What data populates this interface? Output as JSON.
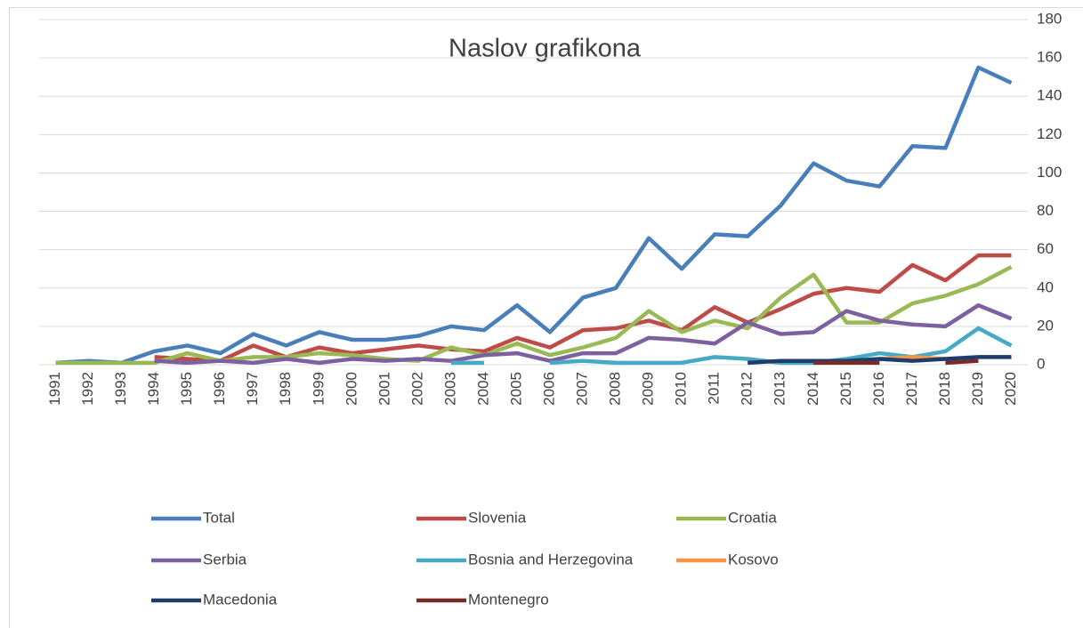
{
  "chart_data": {
    "type": "line",
    "title": "Naslov grafikona",
    "categories": [
      "1991",
      "1992",
      "1993",
      "1994",
      "1995",
      "1996",
      "1997",
      "1998",
      "1999",
      "2000",
      "2001",
      "2002",
      "2003",
      "2004",
      "2005",
      "2006",
      "2007",
      "2008",
      "2009",
      "2010",
      "2011",
      "2012",
      "2013",
      "2014",
      "2015",
      "2016",
      "2017",
      "2018",
      "2019",
      "2020"
    ],
    "ylim": [
      0,
      180
    ],
    "yticks": [
      0,
      20,
      40,
      60,
      80,
      100,
      120,
      140,
      160,
      180
    ],
    "grid": true,
    "legend": "bottom",
    "series": [
      {
        "name": "Total",
        "color": "#4a7ebb",
        "values": [
          1,
          2,
          1,
          7,
          10,
          6,
          16,
          10,
          17,
          13,
          13,
          15,
          20,
          18,
          31,
          17,
          35,
          40,
          66,
          50,
          68,
          67,
          83,
          105,
          96,
          93,
          114,
          113,
          155,
          147
        ]
      },
      {
        "name": "Slovenia",
        "color": "#be4b48",
        "values": [
          null,
          null,
          null,
          4,
          3,
          2,
          10,
          4,
          9,
          6,
          8,
          10,
          8,
          7,
          14,
          9,
          18,
          19,
          23,
          18,
          30,
          22,
          29,
          37,
          40,
          38,
          52,
          44,
          57,
          57
        ]
      },
      {
        "name": "Croatia",
        "color": "#98b954",
        "values": [
          1,
          1,
          1,
          1,
          6,
          2,
          4,
          4,
          6,
          5,
          3,
          2,
          9,
          5,
          11,
          5,
          9,
          14,
          28,
          17,
          23,
          19,
          35,
          47,
          22,
          22,
          32,
          36,
          42,
          51
        ]
      },
      {
        "name": "Serbia",
        "color": "#7d60a0",
        "values": [
          null,
          null,
          null,
          2,
          1,
          2,
          1,
          3,
          1,
          3,
          2,
          3,
          2,
          5,
          6,
          2,
          6,
          6,
          14,
          13,
          11,
          22,
          16,
          17,
          28,
          23,
          21,
          20,
          31,
          24
        ]
      },
      {
        "name": "Bosnia and Herzegovina",
        "color": "#46aac5",
        "values": [
          null,
          null,
          null,
          null,
          null,
          null,
          null,
          null,
          null,
          null,
          null,
          null,
          1,
          1,
          null,
          1,
          2,
          1,
          1,
          1,
          4,
          3,
          1,
          1,
          3,
          6,
          4,
          7,
          19,
          10
        ]
      },
      {
        "name": "Kosovo",
        "color": "#f79646",
        "values": [
          null,
          null,
          null,
          null,
          null,
          null,
          null,
          null,
          null,
          null,
          null,
          null,
          null,
          null,
          null,
          null,
          null,
          null,
          null,
          null,
          null,
          null,
          null,
          null,
          null,
          3,
          4,
          3,
          null,
          null
        ]
      },
      {
        "name": "Macedonia",
        "color": "#1f3d6b",
        "values": [
          null,
          null,
          null,
          null,
          null,
          null,
          null,
          null,
          null,
          null,
          null,
          null,
          null,
          null,
          null,
          null,
          null,
          null,
          null,
          null,
          null,
          1,
          2,
          2,
          2,
          3,
          2,
          3,
          4,
          4
        ]
      },
      {
        "name": "Montenegro",
        "color": "#772c2a",
        "values": [
          null,
          null,
          null,
          null,
          null,
          null,
          null,
          null,
          null,
          null,
          null,
          null,
          null,
          null,
          null,
          null,
          null,
          null,
          null,
          null,
          null,
          null,
          null,
          1,
          1,
          1,
          null,
          1,
          2,
          null
        ]
      }
    ]
  }
}
